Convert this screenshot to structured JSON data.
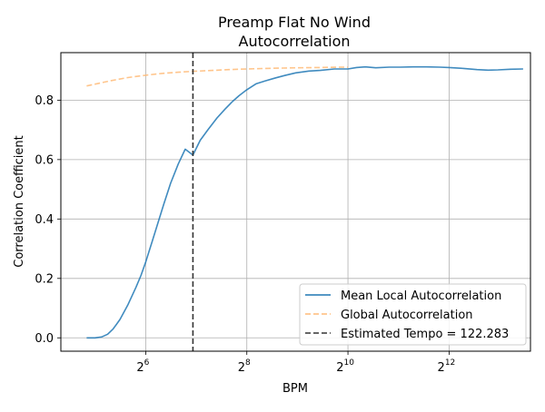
{
  "chart_data": {
    "type": "line",
    "title": "Preamp Flat No Wind",
    "subtitle": "Autocorrelation",
    "xlabel": "BPM",
    "ylabel": "Correlation Coefficient",
    "xscale": "log2",
    "xlim": [
      20,
      12500
    ],
    "ylim": [
      -0.045,
      0.96
    ],
    "xticks": [
      {
        "base": "2",
        "exp": "6",
        "value": 64
      },
      {
        "base": "2",
        "exp": "8",
        "value": 256
      },
      {
        "base": "2",
        "exp": "10",
        "value": 1024
      },
      {
        "base": "2",
        "exp": "12",
        "value": 4096
      }
    ],
    "yticks": [
      {
        "label": "0.0",
        "value": 0.0
      },
      {
        "label": "0.2",
        "value": 0.2
      },
      {
        "label": "0.4",
        "value": 0.4
      },
      {
        "label": "0.6",
        "value": 0.6
      },
      {
        "label": "0.8",
        "value": 0.8
      }
    ],
    "grid": true,
    "legend_position": "lower-right",
    "series": [
      {
        "name": "Mean Local Autocorrelation",
        "color": "#1f77b4",
        "style": "solid",
        "x": [
          28.5,
          32,
          35,
          38,
          41,
          45,
          50,
          56,
          60,
          64,
          70,
          76,
          82,
          90,
          100,
          110,
          122.3,
          135,
          150,
          170,
          190,
          210,
          230,
          256,
          290,
          330,
          380,
          430,
          500,
          600,
          700,
          850,
          1024,
          1150,
          1300,
          1500,
          1800,
          2100,
          2500,
          3000,
          3600,
          4096,
          5000,
          6000,
          7000,
          8000,
          9500,
          11300
        ],
        "y": [
          0.0,
          0.0,
          0.003,
          0.012,
          0.03,
          0.062,
          0.11,
          0.17,
          0.21,
          0.255,
          0.325,
          0.39,
          0.45,
          0.52,
          0.585,
          0.635,
          0.615,
          0.665,
          0.7,
          0.74,
          0.77,
          0.795,
          0.815,
          0.835,
          0.855,
          0.865,
          0.875,
          0.883,
          0.892,
          0.898,
          0.9,
          0.905,
          0.905,
          0.91,
          0.912,
          0.909,
          0.911,
          0.911,
          0.912,
          0.912,
          0.911,
          0.91,
          0.907,
          0.903,
          0.901,
          0.902,
          0.904,
          0.905
        ]
      },
      {
        "name": "Global Autocorrelation",
        "color": "#ffbb78",
        "style": "dashed",
        "x": [
          28.5,
          32,
          40,
          50,
          64,
          80,
          100,
          122.3,
          160,
          200,
          256,
          330,
          420,
          512,
          700,
          900,
          1024
        ],
        "y": [
          0.848,
          0.854,
          0.866,
          0.876,
          0.884,
          0.89,
          0.894,
          0.897,
          0.9,
          0.903,
          0.905,
          0.907,
          0.908,
          0.909,
          0.91,
          0.911,
          0.911
        ]
      }
    ],
    "vlines": [
      {
        "name": "Estimated Tempo = 122.283",
        "x": 122.283,
        "color": "#333333",
        "style": "dashed"
      }
    ]
  }
}
